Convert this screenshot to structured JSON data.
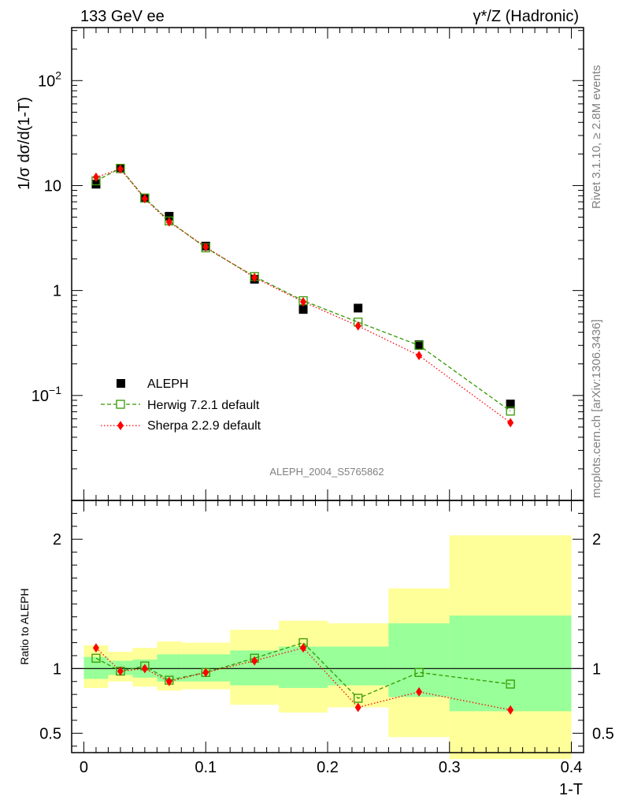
{
  "header": {
    "left": "133 GeV ee",
    "right": "γ*/Z (Hadronic)"
  },
  "side_labels": {
    "rivet": "Rivet 3.1.10, ≥ 2.8M events",
    "mcplots": "mcplots.cern.ch [arXiv:1306.3436]"
  },
  "analysis_id": "ALEPH_2004_S5765862",
  "colors": {
    "data": "#000000",
    "herwig": "#339900",
    "sherpa": "#ff0000",
    "band_inner": "#99ff99",
    "band_outer": "#ffff99"
  },
  "chart_data": [
    {
      "type": "scatter",
      "title": "",
      "xlabel": "1-T",
      "ylabel": "1/σ dσ/d(1-T)",
      "yscale": "log",
      "xlim": [
        -0.01,
        0.41
      ],
      "ylim": [
        0.01,
        320
      ],
      "yticks": [
        "10^-1",
        "1",
        "10",
        "10^2"
      ],
      "legend_position": "bottom-left",
      "legend": [
        "ALEPH",
        "Herwig 7.2.1 default",
        "Sherpa 2.2.9 default"
      ],
      "series": [
        {
          "name": "ALEPH",
          "marker": "square-filled",
          "x": [
            0.01,
            0.03,
            0.05,
            0.07,
            0.1,
            0.14,
            0.18,
            0.225,
            0.275,
            0.35
          ],
          "y": [
            10.3,
            14.5,
            7.6,
            5.1,
            2.65,
            1.28,
            0.66,
            0.68,
            0.305,
            0.083
          ]
        },
        {
          "name": "Herwig 7.2.1 default",
          "marker": "square-open",
          "line": "dashed",
          "x": [
            0.01,
            0.03,
            0.05,
            0.07,
            0.1,
            0.14,
            0.18,
            0.225,
            0.275,
            0.35
          ],
          "y": [
            11.1,
            14.6,
            7.6,
            4.6,
            2.55,
            1.36,
            0.8,
            0.5,
            0.3,
            0.071
          ]
        },
        {
          "name": "Sherpa 2.2.9 default",
          "marker": "diamond-filled",
          "line": "dotted",
          "x": [
            0.01,
            0.03,
            0.05,
            0.07,
            0.1,
            0.14,
            0.18,
            0.225,
            0.275,
            0.35
          ],
          "y": [
            12.0,
            14.4,
            7.5,
            4.5,
            2.6,
            1.33,
            0.78,
            0.46,
            0.24,
            0.055
          ]
        }
      ]
    },
    {
      "type": "scatter",
      "title": "",
      "xlabel": "1-T",
      "ylabel": "Ratio to ALEPH",
      "xlim": [
        -0.01,
        0.41
      ],
      "ylim": [
        0.35,
        2.3
      ],
      "yticks": [
        "0.5",
        "1",
        "2"
      ],
      "xticks": [
        "0",
        "0.1",
        "0.2",
        "0.3",
        "0.4"
      ],
      "bins": [
        {
          "x0": 0.0,
          "x1": 0.02,
          "inner": [
            0.92,
            1.09
          ],
          "outer": [
            0.85,
            1.18
          ]
        },
        {
          "x0": 0.02,
          "x1": 0.04,
          "inner": [
            0.95,
            1.06
          ],
          "outer": [
            0.9,
            1.13
          ]
        },
        {
          "x0": 0.04,
          "x1": 0.06,
          "inner": [
            0.93,
            1.07
          ],
          "outer": [
            0.86,
            1.16
          ]
        },
        {
          "x0": 0.06,
          "x1": 0.08,
          "inner": [
            0.9,
            1.11
          ],
          "outer": [
            0.83,
            1.21
          ]
        },
        {
          "x0": 0.08,
          "x1": 0.12,
          "inner": [
            0.9,
            1.11
          ],
          "outer": [
            0.84,
            1.2
          ]
        },
        {
          "x0": 0.12,
          "x1": 0.16,
          "inner": [
            0.87,
            1.14
          ],
          "outer": [
            0.72,
            1.3
          ]
        },
        {
          "x0": 0.16,
          "x1": 0.2,
          "inner": [
            0.85,
            1.17
          ],
          "outer": [
            0.66,
            1.37
          ]
        },
        {
          "x0": 0.2,
          "x1": 0.25,
          "inner": [
            0.87,
            1.17
          ],
          "outer": [
            0.7,
            1.35
          ]
        },
        {
          "x0": 0.25,
          "x1": 0.3,
          "inner": [
            0.78,
            1.35
          ],
          "outer": [
            0.47,
            1.62
          ]
        },
        {
          "x0": 0.3,
          "x1": 0.4,
          "inner": [
            0.67,
            1.41
          ],
          "outer": [
            0.3,
            2.03
          ]
        }
      ],
      "series": [
        {
          "name": "Herwig 7.2.1 default",
          "marker": "square-open",
          "line": "dashed",
          "x": [
            0.01,
            0.03,
            0.05,
            0.07,
            0.1,
            0.14,
            0.18,
            0.225,
            0.275,
            0.35
          ],
          "y": [
            1.08,
            0.98,
            1.02,
            0.91,
            0.97,
            1.08,
            1.2,
            0.77,
            0.97,
            0.88
          ]
        },
        {
          "name": "Sherpa 2.2.9 default",
          "marker": "diamond-filled",
          "line": "dotted",
          "x": [
            0.01,
            0.03,
            0.05,
            0.07,
            0.1,
            0.14,
            0.18,
            0.225,
            0.275,
            0.35
          ],
          "y": [
            1.16,
            0.98,
            1.0,
            0.9,
            0.97,
            1.06,
            1.16,
            0.7,
            0.82,
            0.68
          ]
        }
      ]
    }
  ]
}
